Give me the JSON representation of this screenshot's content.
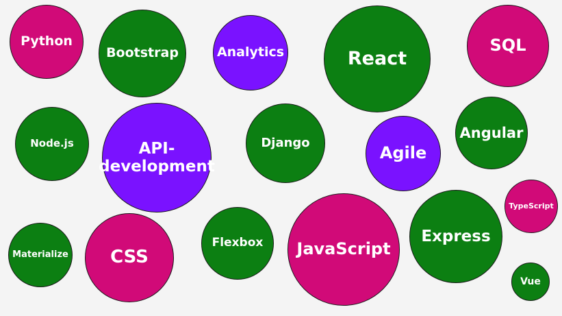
{
  "colors": {
    "pink": "#d10a78",
    "green": "#0c7f12",
    "purple": "#7a12ff"
  },
  "bubbles": [
    {
      "key": "python",
      "label": "Python",
      "color": "pink"
    },
    {
      "key": "bootstrap",
      "label": "Bootstrap",
      "color": "green"
    },
    {
      "key": "analytics",
      "label": "Analytics",
      "color": "purple"
    },
    {
      "key": "react",
      "label": "React",
      "color": "green"
    },
    {
      "key": "sql",
      "label": "SQL",
      "color": "pink"
    },
    {
      "key": "nodejs",
      "label": "Node.js",
      "color": "green"
    },
    {
      "key": "api",
      "label": "API-\ndevelopment",
      "color": "purple"
    },
    {
      "key": "django",
      "label": "Django",
      "color": "green"
    },
    {
      "key": "agile",
      "label": "Agile",
      "color": "purple"
    },
    {
      "key": "angular",
      "label": "Angular",
      "color": "green"
    },
    {
      "key": "typescript",
      "label": "TypeScript",
      "color": "pink"
    },
    {
      "key": "materialize",
      "label": "Materialize",
      "color": "green"
    },
    {
      "key": "css",
      "label": "CSS",
      "color": "pink"
    },
    {
      "key": "flexbox",
      "label": "Flexbox",
      "color": "green"
    },
    {
      "key": "javascript",
      "label": "JavaScript",
      "color": "pink"
    },
    {
      "key": "express",
      "label": "Express",
      "color": "green"
    },
    {
      "key": "vue",
      "label": "Vue",
      "color": "green"
    }
  ]
}
